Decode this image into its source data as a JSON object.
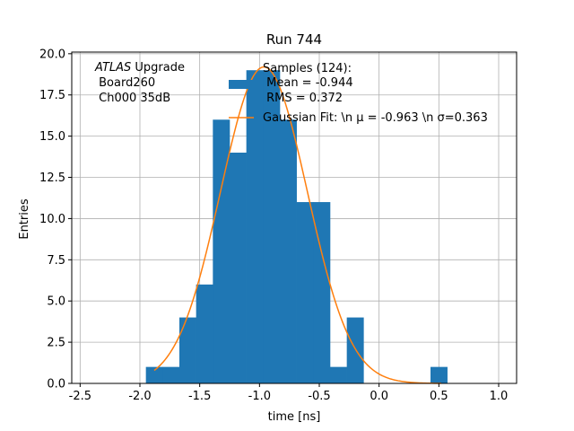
{
  "chart_data": {
    "type": "bar",
    "title": "Run 744",
    "xlabel": "time [ns]",
    "ylabel": "Entries",
    "xlim": [
      -2.57,
      1.15
    ],
    "ylim": [
      0,
      20.1
    ],
    "grid": true,
    "x_ticks": [
      "-2.5",
      "-2.0",
      "-1.5",
      "-1.0",
      "-0.5",
      "0.0",
      "0.5",
      "1.0"
    ],
    "x_tick_values": [
      -2.5,
      -2.0,
      -1.5,
      -1.0,
      -0.5,
      0.0,
      0.5,
      1.0
    ],
    "y_ticks": [
      "0.0",
      "2.5",
      "5.0",
      "7.5",
      "10.0",
      "12.5",
      "15.0",
      "17.5",
      "20.0"
    ],
    "y_tick_values": [
      0,
      2.5,
      5,
      7.5,
      10,
      12.5,
      15,
      17.5,
      20
    ],
    "annotation": {
      "line1_italic": "ATLAS",
      "line1_rest": " Upgrade",
      "line2": " Board260",
      "line3": " Ch000 35dB"
    },
    "colors": {
      "histogram": "#1f77b4",
      "fit": "#ff7f0e",
      "grid": "#b0b0b0"
    },
    "series": [
      {
        "name": "Samples (124):\n Mean = -0.944\n RMS = 0.372",
        "legend_lines": [
          "Samples (124):",
          " Mean = -0.944",
          " RMS = 0.372"
        ],
        "kind": "histogram",
        "bin_edges": [
          -1.95,
          -1.81,
          -1.67,
          -1.53,
          -1.39,
          -1.25,
          -1.11,
          -0.97,
          -0.83,
          -0.69,
          -0.55,
          -0.41,
          -0.27,
          -0.13,
          0.01,
          0.15,
          0.29,
          0.43,
          0.57
        ],
        "counts": [
          1,
          1,
          4,
          6,
          16,
          14,
          19,
          19,
          16,
          11,
          11,
          1,
          4,
          0,
          0,
          0,
          0,
          1
        ]
      },
      {
        "name": "Gaussian Fit: \\n μ = -0.963 \\n σ=0.363",
        "legend_text": "Gaussian Fit: \\n μ = -0.963 \\n σ=0.363",
        "kind": "line",
        "function": "gaussian",
        "amplitude": 19.2,
        "mu": -0.963,
        "sigma": 0.363,
        "x_range": [
          -1.88,
          0.52
        ]
      }
    ]
  }
}
